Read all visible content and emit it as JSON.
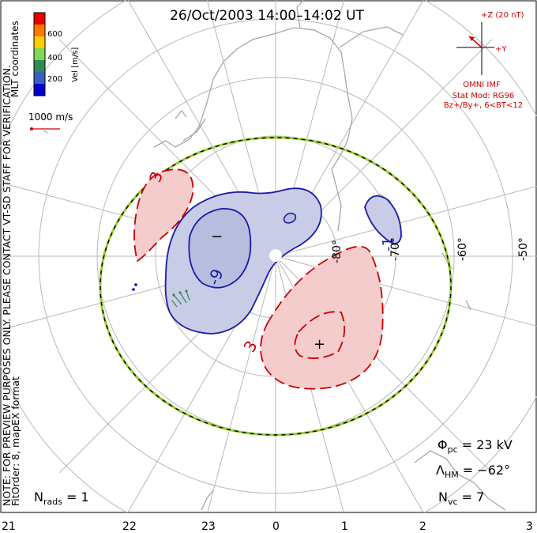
{
  "title": "26/Oct/2003 14:00–14:02 UT",
  "coordinates_label": "MLT coordinates",
  "color_scale": {
    "label": "Vel [m/s]",
    "ticks": [
      "600",
      "400",
      "200"
    ],
    "colors": [
      "#e60000",
      "#ff7a00",
      "#ffcc00",
      "#7ed957",
      "#2e8b57",
      "#3b5fc0",
      "#0000cc"
    ]
  },
  "velocity_reference": "1000 m/s",
  "side_note": {
    "line1": "NOTE: FOR PREVIEW PURPOSES ONLY. PLEASE CONTACT VT-SD STAFF FOR VERIFICATION.",
    "line2": "FitOrder: 8, mapEX format"
  },
  "imf": {
    "z_label": "+Z (20 nT)",
    "y_label": "+Y",
    "source": "OMNI IMF",
    "stat_mod": "Stat Mod: RG96",
    "condition": "Bz+/By+, 6<BT<12"
  },
  "latitude_labels": [
    "-80°",
    "-70°",
    "-60°",
    "-50°"
  ],
  "contour_labels": {
    "neg_a": "-1",
    "neg_b": "-9",
    "pos_a": "3",
    "pos_b": "3"
  },
  "markers": {
    "minimum": "−",
    "maximum": "+"
  },
  "stats": {
    "phi_pc_symbol": "Φ",
    "phi_pc_sub": "pc",
    "phi_pc_value": " = 23 kV",
    "lambda_hm_symbol": "Λ",
    "lambda_hm_sub": "HM",
    "lambda_hm_value": " = −62°",
    "n_vc_symbol": "N",
    "n_vc_sub": "vc",
    "n_vc_value": " = 7",
    "n_rads_symbol": "N",
    "n_rads_sub": "rads",
    "n_rads_value": " = 1"
  },
  "mlt_ticks": [
    "21",
    "22",
    "23",
    "0",
    "1",
    "2",
    "3"
  ],
  "colors": {
    "positive_contour": "#cc0000",
    "negative_contour": "#1a1aa8",
    "positive_fill": "#f4cccc",
    "negative_fill": "#c8cce6",
    "boundary_green": "#9acd32",
    "grid": "#b8b8b8",
    "coast": "#a6a6a6"
  }
}
